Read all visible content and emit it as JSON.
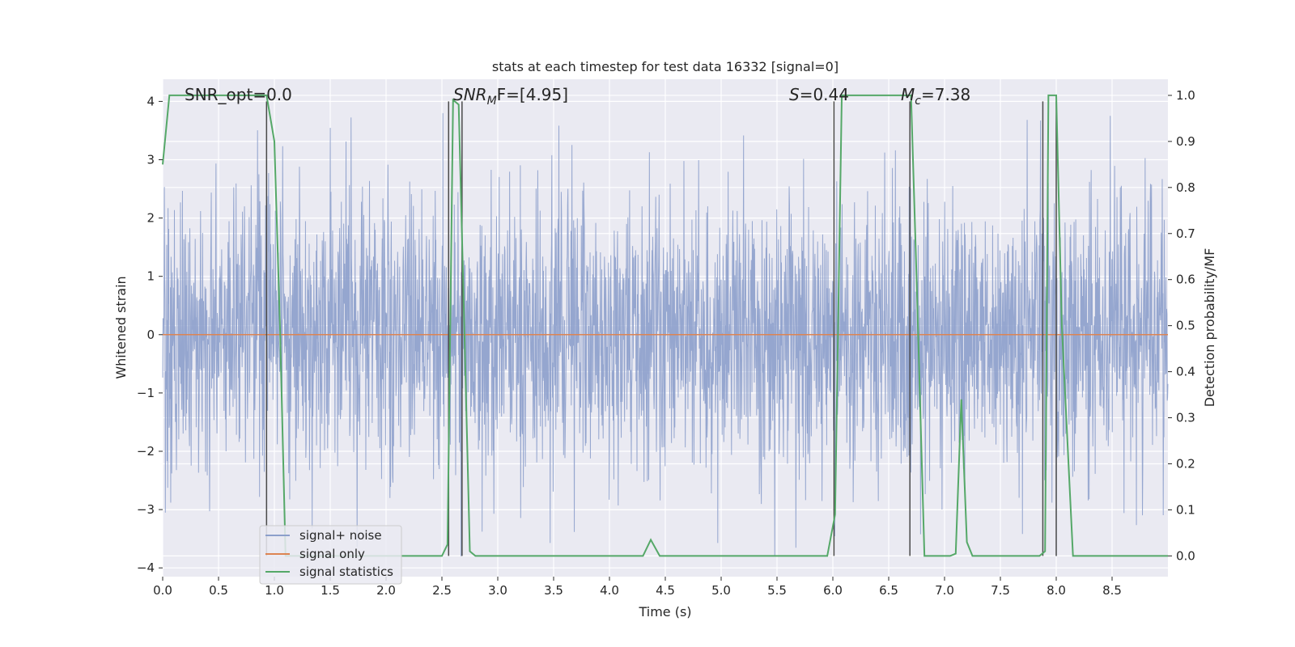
{
  "chart_data": {
    "type": "line",
    "title": "stats at each timestep for test data 16332 [signal=0]",
    "xlabel": "Time (s)",
    "ylabel": "Whitened strain",
    "ylabel_right": "Detection probability/MF",
    "xlim": [
      0.0,
      9.0
    ],
    "ylim": [
      -4.15,
      4.38
    ],
    "ylim_right": [
      -0.045,
      1.035
    ],
    "x_ticks": [
      "0.0",
      "0.5",
      "1.0",
      "1.5",
      "2.0",
      "2.5",
      "3.0",
      "3.5",
      "4.0",
      "4.5",
      "5.0",
      "5.5",
      "6.0",
      "6.5",
      "7.0",
      "7.5",
      "8.0",
      "8.5"
    ],
    "y_ticks": [
      "4",
      "3",
      "2",
      "1",
      "0",
      "−1",
      "−2",
      "−3",
      "−4"
    ],
    "y_right_ticks": [
      "1.0",
      "0.9",
      "0.8",
      "0.7",
      "0.6",
      "0.5",
      "0.4",
      "0.3",
      "0.2",
      "0.1",
      "0.0"
    ],
    "grid": true,
    "legend_position": "lower-left",
    "annotations": {
      "snr_opt": "SNR_opt=0.0",
      "snr_mf_base": "SNR",
      "snr_mf_sub": "M",
      "snr_mf_rest": "F=[4.95]",
      "s_var": "S",
      "s_rest": "=0.44",
      "mc_var": "M",
      "mc_sub": "c",
      "mc_rest": "=7.38"
    },
    "series": [
      {
        "name": "signal+ noise",
        "color": "#8c9fcb",
        "description_values": "whitened noise, roughly N(0,1), range about [-3.8, 3.8], sampled densely over 0–9 s"
      },
      {
        "name": "signal only",
        "color": "#dd8452",
        "x": [
          0.0,
          9.0
        ],
        "y": [
          0.0,
          0.0
        ]
      },
      {
        "name": "signal statistics",
        "color": "#55a868",
        "axis": "right",
        "x": [
          0.0,
          0.06,
          0.1,
          0.2,
          0.5,
          0.8,
          0.93,
          1.0,
          1.05,
          1.1,
          1.2,
          2.0,
          2.5,
          2.55,
          2.6,
          2.65,
          2.7,
          2.75,
          2.8,
          3.0,
          4.0,
          4.3,
          4.37,
          4.45,
          5.0,
          5.5,
          5.95,
          6.02,
          6.08,
          6.2,
          6.5,
          6.6,
          6.7,
          6.75,
          6.82,
          6.9,
          7.05,
          7.1,
          7.15,
          7.2,
          7.25,
          7.5,
          7.85,
          7.9,
          7.93,
          8.0,
          8.05,
          8.15,
          8.3,
          8.5,
          9.0
        ],
        "y": [
          0.85,
          1.0,
          1.0,
          1.0,
          1.0,
          1.0,
          1.0,
          0.9,
          0.5,
          0.0,
          0.0,
          0.0,
          0.0,
          0.025,
          0.99,
          0.98,
          0.5,
          0.01,
          0.0,
          0.0,
          0.0,
          0.0,
          0.035,
          0.0,
          0.0,
          0.0,
          0.0,
          0.09,
          1.0,
          1.0,
          1.0,
          1.0,
          1.0,
          0.6,
          0.0,
          0.0,
          0.0,
          0.005,
          0.34,
          0.03,
          0.0,
          0.0,
          0.0,
          0.01,
          1.0,
          1.0,
          0.5,
          0.0,
          0.0,
          0.0,
          0.0
        ]
      }
    ],
    "vertical_markers_x": [
      0.93,
      2.56,
      2.68,
      6.01,
      6.69,
      7.88,
      8.0
    ],
    "vertical_marker_color": "#4a4a4a"
  }
}
